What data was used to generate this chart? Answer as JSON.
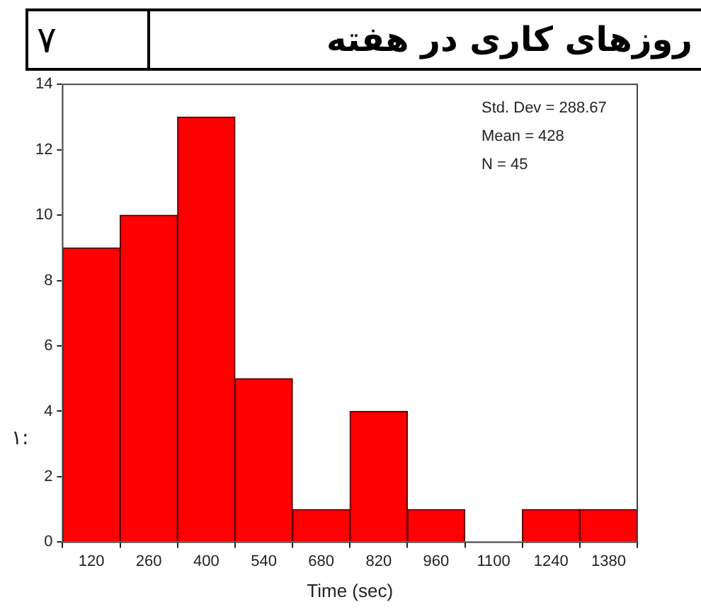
{
  "chart_data": {
    "type": "histogram",
    "title": "روزهای کاری در هفته",
    "subtitle": "٧",
    "xlabel": "Time (sec)",
    "bins": [
      50,
      190,
      330,
      470,
      610,
      750,
      890,
      1030,
      1170,
      1310,
      1450
    ],
    "values": [
      9,
      10,
      13,
      5,
      1,
      4,
      1,
      0,
      1,
      1
    ],
    "color": "#ff0000",
    "xlim": [
      50,
      1450
    ],
    "xticks": [
      120,
      260,
      400,
      540,
      680,
      820,
      960,
      1100,
      1240,
      1380
    ],
    "ylim": [
      0,
      14
    ],
    "yticks": [
      0,
      2,
      4,
      6,
      8,
      10,
      12,
      14
    ],
    "grid": false,
    "legend": false,
    "annotations": [
      "Std. Dev = 288.67",
      "Mean = 428",
      "N = 45",
      "١:"
    ]
  }
}
